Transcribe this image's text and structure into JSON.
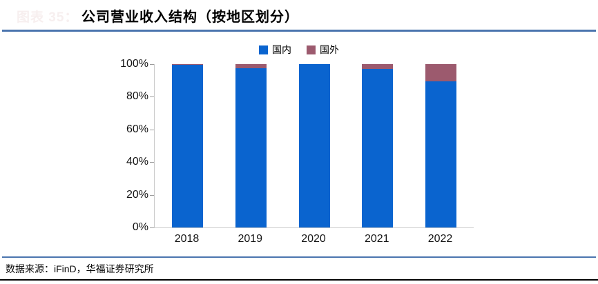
{
  "figure_label": "图表 35：",
  "title": "公司营业收入结构（按地区划分）",
  "legend": {
    "items": [
      {
        "label": "国内",
        "color": "#0a64cf"
      },
      {
        "label": "国外",
        "color": "#9c5a6e"
      }
    ]
  },
  "footer": {
    "source_text": "数据来源：iFinD，华福证券研究所"
  },
  "colors": {
    "domestic_bar": "#0a64cf",
    "foreign_bar": "#9c5a6e",
    "rule_blue": "#4a74ae",
    "rule_black": "#000000",
    "axis_gray": "#c9c9c9"
  },
  "chart_data": {
    "type": "bar",
    "stacked": true,
    "title": "公司营业收入结构（按地区划分）",
    "categories": [
      "2018",
      "2019",
      "2020",
      "2021",
      "2022"
    ],
    "series": [
      {
        "name": "国内",
        "color": "#0a64cf",
        "values": [
          99.7,
          97.6,
          100,
          97,
          89.5
        ]
      },
      {
        "name": "国外",
        "color": "#9c5a6e",
        "values": [
          0.3,
          2.4,
          0,
          3,
          10.5
        ]
      }
    ],
    "xlabel": "",
    "ylabel": "",
    "ylim": [
      0,
      100
    ],
    "y_ticks": [
      "0%",
      "20%",
      "40%",
      "60%",
      "80%",
      "100%"
    ],
    "grid": false,
    "legend_position": "top"
  }
}
